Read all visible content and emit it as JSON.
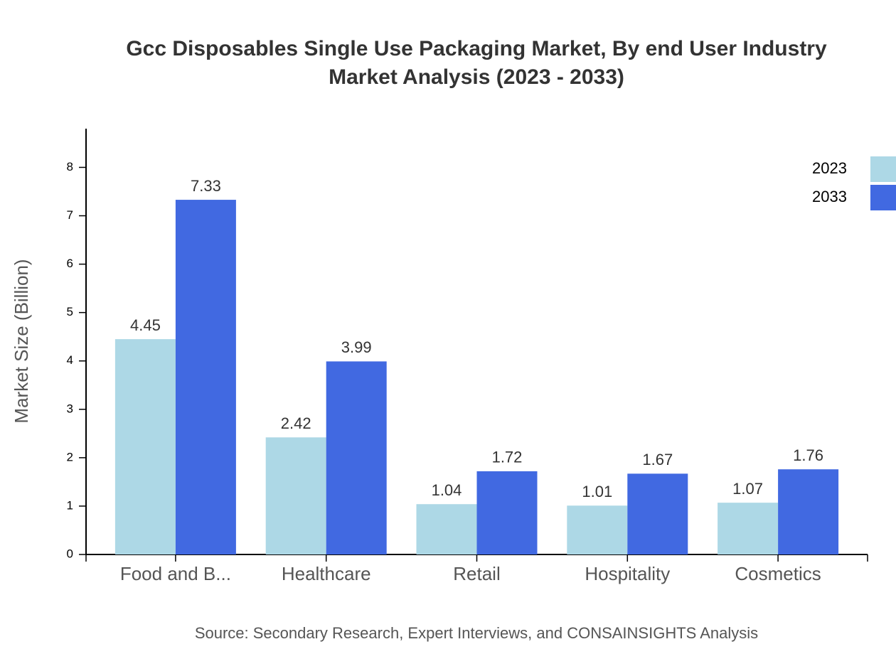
{
  "chart_data": {
    "type": "bar",
    "title": [
      "Gcc Disposables Single Use Packaging Market, By end User Industry",
      "Market Analysis (2023 - 2033)"
    ],
    "y_label": "Market Size (Billion)",
    "source": "Source: Secondary Research, Expert Interviews, and CONSAINSIGHTS Analysis",
    "categories": [
      "Food and B...",
      "Healthcare",
      "Retail",
      "Hospitality",
      "Cosmetics"
    ],
    "series": [
      {
        "name": "2023",
        "color": "#add8e6",
        "values": [
          4.45,
          2.42,
          1.04,
          1.01,
          1.07
        ]
      },
      {
        "name": "2033",
        "color": "#4169e1",
        "values": [
          7.33,
          3.99,
          1.72,
          1.67,
          1.76
        ]
      }
    ],
    "ylim": [
      0,
      8.8
    ],
    "yticks": [
      0,
      1,
      2,
      3,
      4,
      5,
      6,
      7,
      8
    ],
    "legend": "top-right"
  }
}
